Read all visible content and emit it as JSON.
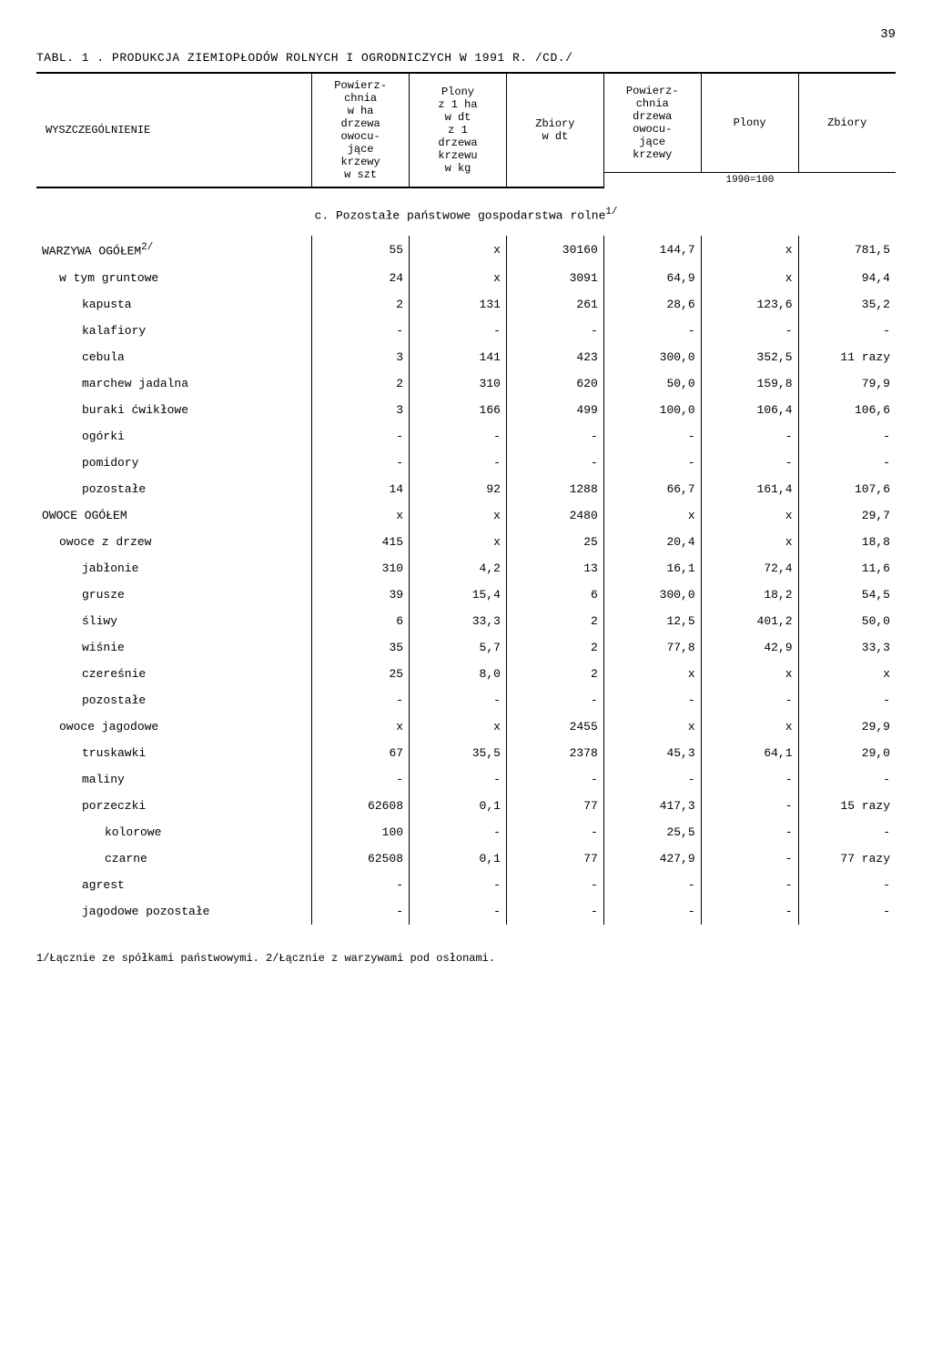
{
  "page_number": "39",
  "table_title": "TABL. 1 . PRODUKCJA ZIEMIOPŁODÓW ROLNYCH I OGRODNICZYCH W 1991 R. /CD./",
  "header": {
    "col1": "WYSZCZEGÓLNIENIE",
    "col2": "Powierz-\nchnia\nw ha\ndrzewa\nowocu-\njące\nkrzewy\nw szt",
    "col3": "Plony\nz 1 ha\nw dt\nz 1\ndrzewa\nkrzewu\nw kg",
    "col4": "Zbiory\nw dt",
    "col5": "Powierz-\nchnia\ndrzewa\nowocu-\njące\nkrzewy",
    "col6": "Plony",
    "col7": "Zbiory",
    "sub_right": "1990=100"
  },
  "section_c": "c. Pozostałe państwowe gospodarstwa rolne",
  "section_c_sup": "1/",
  "rows": [
    {
      "label": "WARZYWA OGÓŁEM",
      "sup": "2/",
      "indent": 0,
      "c": [
        "55",
        "x",
        "30160",
        "144,7",
        "x",
        "781,5"
      ]
    },
    {
      "label": "w tym gruntowe",
      "indent": 1,
      "c": [
        "24",
        "x",
        "3091",
        "64,9",
        "x",
        "94,4"
      ]
    },
    {
      "label": "kapusta",
      "indent": 2,
      "c": [
        "2",
        "131",
        "261",
        "28,6",
        "123,6",
        "35,2"
      ]
    },
    {
      "label": "kalafiory",
      "indent": 2,
      "c": [
        "-",
        "-",
        "-",
        "-",
        "-",
        "-"
      ]
    },
    {
      "label": "cebula",
      "indent": 2,
      "c": [
        "3",
        "141",
        "423",
        "300,0",
        "352,5",
        "11 razy"
      ]
    },
    {
      "label": "marchew jadalna",
      "indent": 2,
      "c": [
        "2",
        "310",
        "620",
        "50,0",
        "159,8",
        "79,9"
      ]
    },
    {
      "label": "buraki ćwikłowe",
      "indent": 2,
      "c": [
        "3",
        "166",
        "499",
        "100,0",
        "106,4",
        "106,6"
      ]
    },
    {
      "label": "ogórki",
      "indent": 2,
      "c": [
        "-",
        "-",
        "-",
        "-",
        "-",
        "-"
      ]
    },
    {
      "label": "pomidory",
      "indent": 2,
      "c": [
        "-",
        "-",
        "-",
        "-",
        "-",
        "-"
      ]
    },
    {
      "label": "pozostałe",
      "indent": 2,
      "c": [
        "14",
        "92",
        "1288",
        "66,7",
        "161,4",
        "107,6"
      ]
    },
    {
      "label": "OWOCE OGÓŁEM",
      "indent": 0,
      "c": [
        "x",
        "x",
        "2480",
        "x",
        "x",
        "29,7"
      ]
    },
    {
      "label": "owoce z drzew",
      "indent": 1,
      "c": [
        "415",
        "x",
        "25",
        "20,4",
        "x",
        "18,8"
      ]
    },
    {
      "label": "jabłonie",
      "indent": 2,
      "c": [
        "310",
        "4,2",
        "13",
        "16,1",
        "72,4",
        "11,6"
      ]
    },
    {
      "label": "grusze",
      "indent": 2,
      "c": [
        "39",
        "15,4",
        "6",
        "300,0",
        "18,2",
        "54,5"
      ]
    },
    {
      "label": "śliwy",
      "indent": 2,
      "c": [
        "6",
        "33,3",
        "2",
        "12,5",
        "401,2",
        "50,0"
      ]
    },
    {
      "label": "wiśnie",
      "indent": 2,
      "c": [
        "35",
        "5,7",
        "2",
        "77,8",
        "42,9",
        "33,3"
      ]
    },
    {
      "label": "czereśnie",
      "indent": 2,
      "c": [
        "25",
        "8,0",
        "2",
        "x",
        "x",
        "x"
      ]
    },
    {
      "label": "pozostałe",
      "indent": 2,
      "c": [
        "-",
        "-",
        "-",
        "-",
        "-",
        "-"
      ]
    },
    {
      "label": "owoce jagodowe",
      "indent": 1,
      "c": [
        "x",
        "x",
        "2455",
        "x",
        "x",
        "29,9"
      ]
    },
    {
      "label": "truskawki",
      "indent": 2,
      "c": [
        "67",
        "35,5",
        "2378",
        "45,3",
        "64,1",
        "29,0"
      ]
    },
    {
      "label": "maliny",
      "indent": 2,
      "c": [
        "-",
        "-",
        "-",
        "-",
        "-",
        "-"
      ]
    },
    {
      "label": "porzeczki",
      "indent": 2,
      "c": [
        "62608",
        "0,1",
        "77",
        "417,3",
        "-",
        "15 razy"
      ]
    },
    {
      "label": "kolorowe",
      "indent": 3,
      "c": [
        "100",
        "-",
        "-",
        "25,5",
        "-",
        "-"
      ]
    },
    {
      "label": "czarne",
      "indent": 3,
      "c": [
        "62508",
        "0,1",
        "77",
        "427,9",
        "-",
        "77 razy"
      ]
    },
    {
      "label": "agrest",
      "indent": 2,
      "c": [
        "-",
        "-",
        "-",
        "-",
        "-",
        "-"
      ]
    },
    {
      "label": "jagodowe pozostałe",
      "indent": 2,
      "c": [
        "-",
        "-",
        "-",
        "-",
        "-",
        "-"
      ]
    }
  ],
  "footnote": "1/Łącznie ze spółkami państwowymi. 2/Łącznie z warzywami pod osłonami."
}
